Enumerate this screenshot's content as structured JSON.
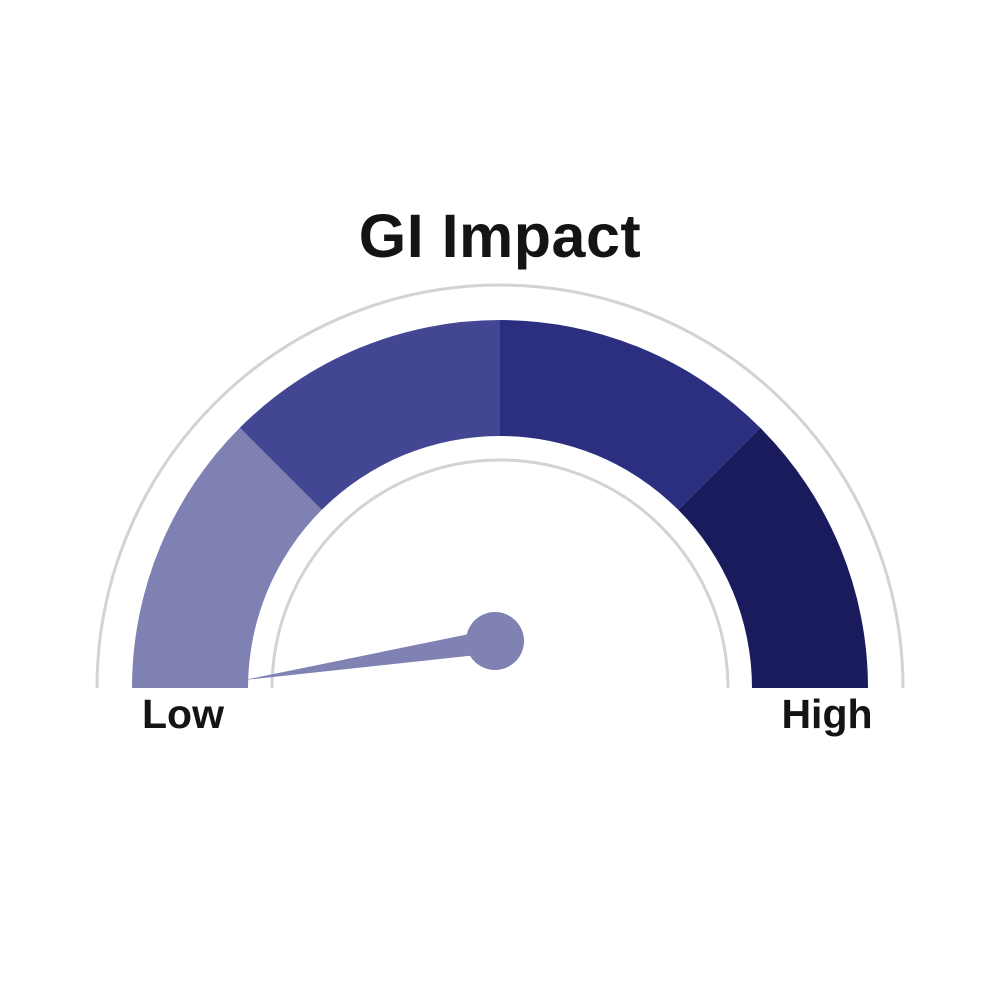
{
  "title": "GI Impact",
  "gauge_labels": {
    "min": "Low",
    "max": "High"
  },
  "colors": {
    "background": "#FFFFFF",
    "text": "#141414",
    "outline_arcs": "#D3D3D3",
    "needle": "#8082B4"
  },
  "chart_data": {
    "type": "gauge",
    "title": "GI Impact",
    "min_label": "Low",
    "max_label": "High",
    "range": [
      0,
      100
    ],
    "value": 1,
    "arc_span_deg": 180,
    "segments": [
      {
        "from": 0,
        "to": 25,
        "color": "#7E81B1"
      },
      {
        "from": 25,
        "to": 50,
        "color": "#434793"
      },
      {
        "from": 50,
        "to": 75,
        "color": "#2C2F80"
      },
      {
        "from": 75,
        "to": 100,
        "color": "#191B5C"
      }
    ],
    "needle_color": "#8082B4",
    "outline_color": "#D3D3D3",
    "legend": false,
    "grid": false
  }
}
